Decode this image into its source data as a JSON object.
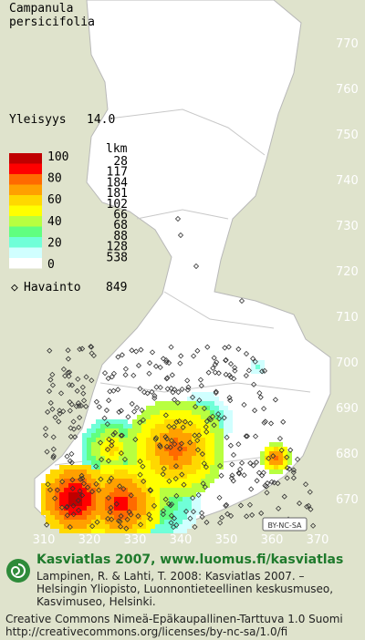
{
  "title": [
    "Campanula",
    "persicifolia"
  ],
  "frequency": {
    "label": "Yleisyys",
    "value": "14.0"
  },
  "legend": {
    "count_header": "lkm",
    "scale_labels": [
      100,
      80,
      60,
      40,
      20,
      0
    ],
    "colors": [
      "#c00000",
      "#ff0000",
      "#ff6a00",
      "#ffa000",
      "#ffd800",
      "#ffff00",
      "#b8ff40",
      "#60ff80",
      "#70ffd8",
      "#d0ffff",
      "#ffffff"
    ],
    "counts": [
      28,
      117,
      184,
      181,
      102,
      66,
      68,
      88,
      128,
      538
    ]
  },
  "observation": {
    "label": "Havainto",
    "value": "849"
  },
  "grid": {
    "yticks": [
      770,
      760,
      750,
      740,
      730,
      720,
      710,
      700,
      690,
      680,
      670
    ],
    "xticks": [
      310,
      320,
      330,
      340,
      350,
      360,
      370
    ]
  },
  "license_badge": "BY-NC-SA",
  "footer": {
    "heading": "Kasviatlas 2007, www.luomus.fi/kasviatlas",
    "citation": [
      "Lampinen, R. & Lahti, T. 2008: Kasviatlas 2007. –",
      "Helsingin Yliopisto, Luonnontieteellinen keskusmuseo,",
      "Kasvimuseo, Helsinki."
    ],
    "license": [
      "Creative Commons Nimeä-Epäkaupallinen-Tarttuva 1.0 Suomi",
      "http://creativecommons.org/licenses/by-nc-sa/1.0/fi"
    ]
  }
}
